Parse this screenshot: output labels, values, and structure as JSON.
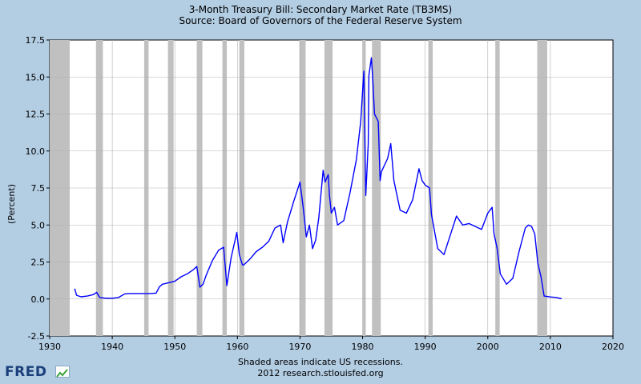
{
  "header": {
    "title": "3-Month Treasury Bill: Secondary Market Rate (TB3MS)",
    "source": "Source: Board of Governors of the Federal Reserve System"
  },
  "footer": {
    "note": "Shaded areas indicate US recessions.",
    "credit": "2012 research.stlouisfed.org"
  },
  "logo": {
    "text": "FRED",
    "icon": "chart-line-icon"
  },
  "colors": {
    "background": "#b3cde3",
    "plot_bg": "#ffffff",
    "line": "#0000ff",
    "recession": "#c0c0c0",
    "grid": "#b0b0b0"
  },
  "chart_data": {
    "type": "line",
    "title": "3-Month Treasury Bill: Secondary Market Rate (TB3MS)",
    "xlabel": "",
    "ylabel": "(Percent)",
    "xlim": [
      1930,
      2020
    ],
    "ylim": [
      -2.5,
      17.5
    ],
    "xticks": [
      "1930",
      "1940",
      "1950",
      "1960",
      "1970",
      "1980",
      "1990",
      "2000",
      "2010",
      "2020"
    ],
    "yticks": [
      "-2.5",
      "0.0",
      "2.5",
      "5.0",
      "7.5",
      "10.0",
      "12.5",
      "15.0",
      "17.5"
    ],
    "grid": true,
    "recessions": [
      [
        1929.6,
        1933.2
      ],
      [
        1937.4,
        1938.5
      ],
      [
        1945.1,
        1945.8
      ],
      [
        1948.9,
        1949.8
      ],
      [
        1953.5,
        1954.4
      ],
      [
        1957.6,
        1958.3
      ],
      [
        1960.3,
        1961.1
      ],
      [
        1969.9,
        1970.9
      ],
      [
        1973.9,
        1975.2
      ],
      [
        1980.0,
        1980.5
      ],
      [
        1981.5,
        1982.9
      ],
      [
        1990.5,
        1991.2
      ],
      [
        2001.2,
        2001.9
      ],
      [
        2007.9,
        2009.5
      ]
    ],
    "series": [
      {
        "x": [
          1934.0,
          1934.3,
          1935,
          1936,
          1937,
          1937.5,
          1938,
          1939,
          1940,
          1941,
          1942,
          1943,
          1944,
          1945,
          1946,
          1947,
          1947.5,
          1948,
          1949,
          1950,
          1951,
          1952,
          1953,
          1953.5,
          1954,
          1954.5,
          1955,
          1956,
          1957,
          1957.8,
          1958.3,
          1959,
          1959.9,
          1960.3,
          1960.8,
          1961,
          1962,
          1963,
          1964,
          1965,
          1966,
          1966.9,
          1967.3,
          1968,
          1969,
          1970.0,
          1970.5,
          1971.0,
          1971.5,
          1972.0,
          1972.5,
          1973.0,
          1973.7,
          1974.0,
          1974.5,
          1974.7,
          1975.0,
          1975.5,
          1976,
          1977,
          1978,
          1979,
          1979.7,
          1980.2,
          1980.5,
          1980.9,
          1981.0,
          1981.4,
          1981.6,
          1981.9,
          1982.5,
          1982.8,
          1983,
          1984,
          1984.5,
          1985,
          1986,
          1987,
          1988,
          1989,
          1989.5,
          1990,
          1990.7,
          1991,
          1992,
          1993,
          1994,
          1995,
          1996,
          1997,
          1998,
          1999,
          2000,
          2000.7,
          2001,
          2001.5,
          2002,
          2003,
          2004,
          2005,
          2006,
          2006.5,
          2007,
          2007.5,
          2008.0,
          2008.5,
          2009,
          2010,
          2011,
          2011.8
        ],
        "values": [
          0.7,
          0.25,
          0.15,
          0.2,
          0.3,
          0.45,
          0.1,
          0.05,
          0.05,
          0.1,
          0.35,
          0.37,
          0.37,
          0.37,
          0.37,
          0.4,
          0.8,
          1.0,
          1.1,
          1.2,
          1.5,
          1.7,
          2.0,
          2.2,
          0.8,
          1.0,
          1.6,
          2.6,
          3.3,
          3.5,
          0.9,
          2.8,
          4.5,
          3.0,
          2.3,
          2.3,
          2.7,
          3.2,
          3.5,
          3.9,
          4.8,
          5.0,
          3.8,
          5.2,
          6.6,
          7.9,
          6.2,
          4.2,
          5.0,
          3.4,
          4.0,
          5.5,
          8.7,
          7.9,
          8.4,
          7.0,
          5.8,
          6.2,
          5.0,
          5.3,
          7.2,
          9.4,
          12.0,
          15.4,
          7.0,
          10.5,
          15.1,
          16.3,
          15.0,
          12.5,
          12.0,
          8.0,
          8.6,
          9.5,
          10.5,
          8.0,
          6.0,
          5.8,
          6.7,
          8.8,
          8.0,
          7.7,
          7.5,
          5.7,
          3.4,
          3.0,
          4.3,
          5.6,
          5.0,
          5.1,
          4.9,
          4.7,
          5.8,
          6.2,
          4.4,
          3.4,
          1.7,
          1.0,
          1.4,
          3.2,
          4.8,
          5.0,
          4.9,
          4.4,
          2.4,
          1.5,
          0.2,
          0.14,
          0.1,
          0.02
        ]
      }
    ]
  }
}
